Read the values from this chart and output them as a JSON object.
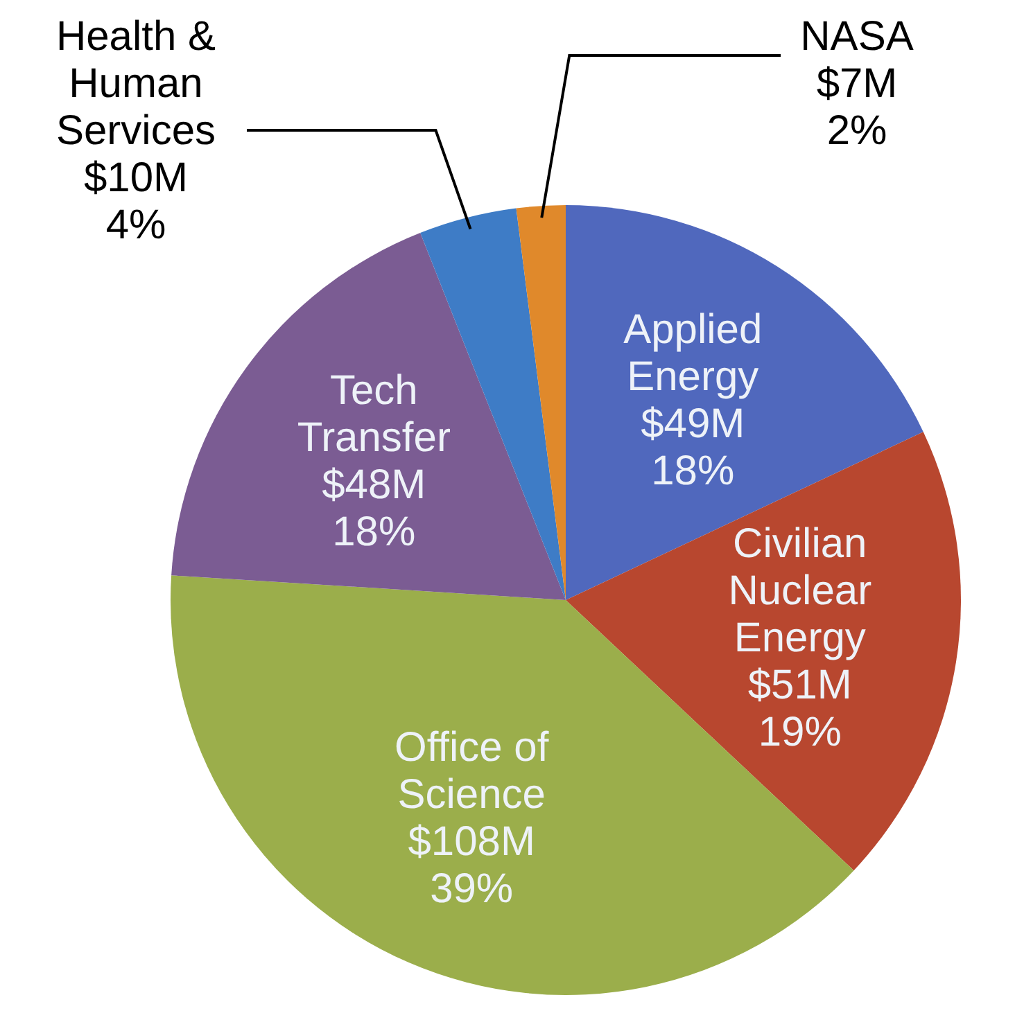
{
  "chart_data": {
    "type": "pie",
    "categories": [
      "Applied Energy",
      "Civilian Nuclear Energy",
      "Office of Science",
      "Tech Transfer",
      "Health & Human Services",
      "NASA"
    ],
    "values": [
      18,
      19,
      39,
      18,
      4,
      2
    ],
    "colors": [
      "#5068bd",
      "#b8472f",
      "#9bae4b",
      "#7b5c93",
      "#3e7cc6",
      "#e0892b"
    ],
    "value_labels": [
      "$49M\n18%",
      "$51M\n19%",
      "$108M\n39%",
      "$48M\n18%",
      "$10M\n4%",
      "$7M\n2%"
    ]
  }
}
